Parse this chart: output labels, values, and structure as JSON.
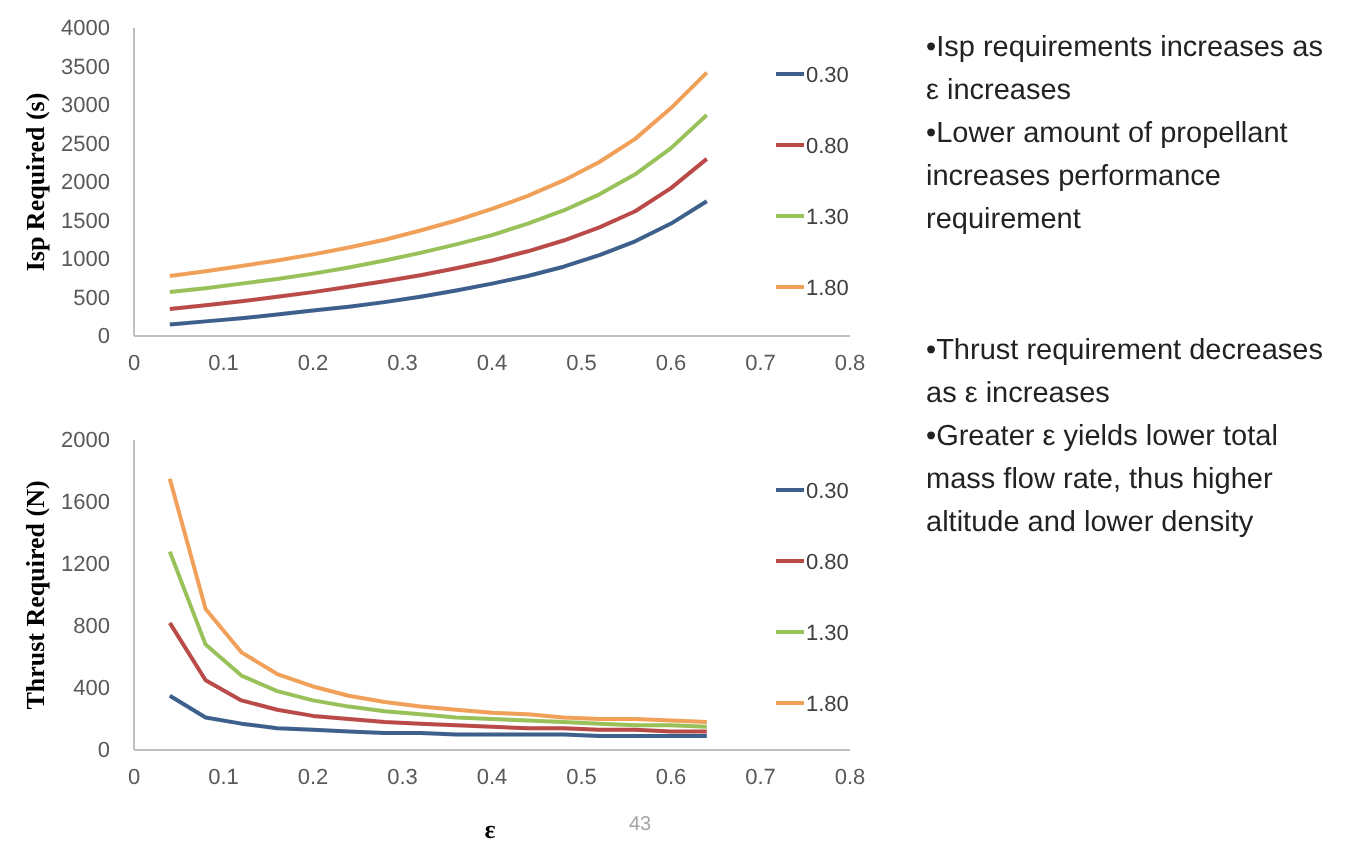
{
  "chart_data": [
    {
      "type": "line",
      "ylabel": "Isp Required (s)",
      "x": [
        0.04,
        0.08,
        0.12,
        0.16,
        0.2,
        0.24,
        0.28,
        0.32,
        0.36,
        0.4,
        0.44,
        0.48,
        0.52,
        0.56,
        0.6,
        0.64
      ],
      "xlim": [
        0,
        0.8
      ],
      "xticks": [
        0,
        0.1,
        0.2,
        0.3,
        0.4,
        0.5,
        0.6,
        0.7,
        0.8
      ],
      "ylim": [
        0,
        4000
      ],
      "yticks": [
        0,
        500,
        1000,
        1500,
        2000,
        2500,
        3000,
        3500,
        4000
      ],
      "grid": false,
      "legend": "right",
      "marker": "none",
      "line_style": "solid",
      "series": [
        {
          "name": "0.30",
          "color": "#3d5f8c",
          "values": [
            150,
            190,
            230,
            280,
            330,
            380,
            440,
            510,
            590,
            680,
            780,
            900,
            1050,
            1230,
            1460,
            1750
          ]
        },
        {
          "name": "0.80",
          "color": "#b94a48",
          "values": [
            350,
            400,
            450,
            510,
            570,
            640,
            710,
            790,
            880,
            980,
            1100,
            1240,
            1410,
            1620,
            1920,
            2300
          ]
        },
        {
          "name": "1.30",
          "color": "#98c15a",
          "values": [
            570,
            620,
            680,
            740,
            810,
            890,
            980,
            1080,
            1190,
            1310,
            1460,
            1630,
            1840,
            2100,
            2440,
            2870
          ]
        },
        {
          "name": "1.80",
          "color": "#f0a058",
          "values": [
            780,
            840,
            910,
            980,
            1060,
            1150,
            1250,
            1370,
            1500,
            1650,
            1820,
            2020,
            2260,
            2560,
            2960,
            3420
          ]
        }
      ]
    },
    {
      "type": "line",
      "ylabel": "Thrust Required (N)",
      "xlabel": "ε",
      "x": [
        0.04,
        0.08,
        0.12,
        0.16,
        0.2,
        0.24,
        0.28,
        0.32,
        0.36,
        0.4,
        0.44,
        0.48,
        0.52,
        0.56,
        0.6,
        0.64
      ],
      "xlim": [
        0,
        0.8
      ],
      "xticks": [
        0,
        0.1,
        0.2,
        0.3,
        0.4,
        0.5,
        0.6,
        0.7,
        0.8
      ],
      "ylim": [
        0,
        2000
      ],
      "yticks": [
        0,
        400,
        800,
        1200,
        1600,
        2000
      ],
      "grid": false,
      "legend": "right",
      "marker": "none",
      "line_style": "solid",
      "annotations": [
        "43"
      ],
      "series": [
        {
          "name": "0.30",
          "color": "#3d5f8c",
          "values": [
            350,
            210,
            170,
            140,
            130,
            120,
            110,
            110,
            100,
            100,
            100,
            100,
            90,
            90,
            90,
            90
          ]
        },
        {
          "name": "0.80",
          "color": "#b94a48",
          "values": [
            820,
            450,
            320,
            260,
            220,
            200,
            180,
            170,
            160,
            150,
            140,
            140,
            130,
            130,
            120,
            120
          ]
        },
        {
          "name": "1.30",
          "color": "#98c15a",
          "values": [
            1280,
            680,
            480,
            380,
            320,
            280,
            250,
            230,
            210,
            200,
            190,
            180,
            170,
            160,
            160,
            150
          ]
        },
        {
          "name": "1.80",
          "color": "#f0a058",
          "values": [
            1750,
            910,
            630,
            490,
            410,
            350,
            310,
            280,
            260,
            240,
            230,
            210,
            200,
            200,
            190,
            180
          ]
        }
      ]
    },
    {
      "type": "other",
      "annotations": [
        "•Isp requirements increases as ε increases",
        "•Lower amount of propellant increases performance requirement",
        "•Thrust requirement decreases as ε increases",
        "•Greater ε yields lower total mass flow rate, thus higher altitude and lower density"
      ]
    }
  ]
}
